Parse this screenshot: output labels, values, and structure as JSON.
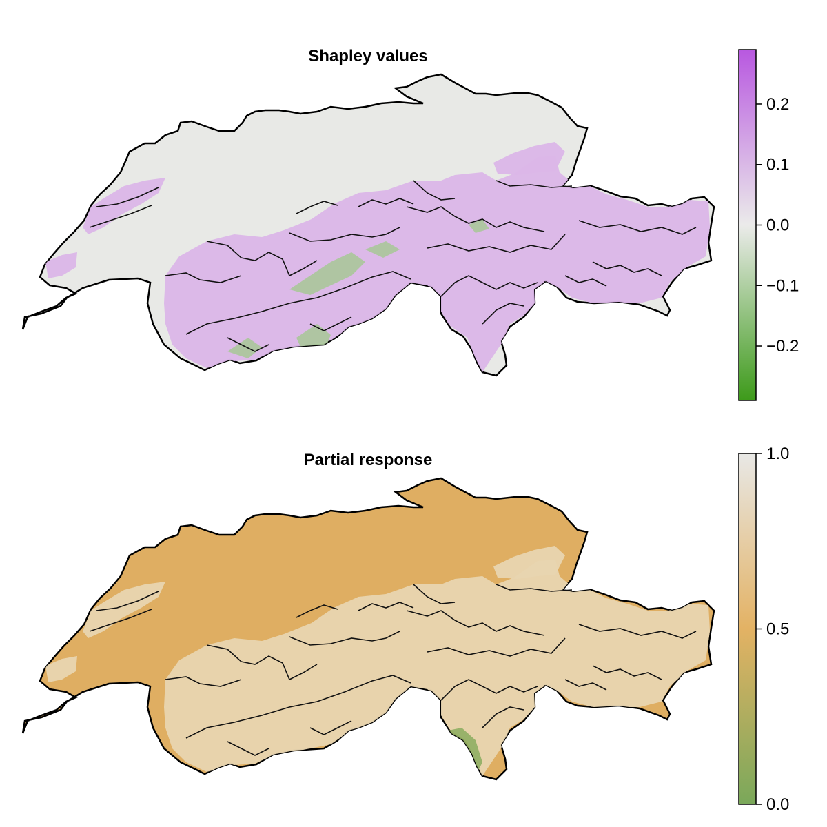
{
  "panels": [
    {
      "title": "Shapley values",
      "colorbar": {
        "ticks": [
          "0.2",
          "0.1",
          "0.0",
          "−0.1",
          "−0.2"
        ],
        "tick_values": [
          0.2,
          0.1,
          0.0,
          -0.1,
          -0.2
        ],
        "range": [
          -0.29,
          0.29
        ],
        "colors": {
          "low": "#3d9a1a",
          "mid": "#ebebea",
          "high": "#b858e0"
        }
      },
      "map_colors": {
        "base": "#e8e9e6",
        "positive": "#dbb6e8",
        "negative": "#aac79a"
      }
    },
    {
      "title": "Partial response",
      "colorbar": {
        "ticks": [
          "1.0",
          "0.5",
          "0.0"
        ],
        "tick_values": [
          1.0,
          0.5,
          0.0
        ],
        "range": [
          0.0,
          1.0
        ],
        "colors": {
          "low": "#7aa85a",
          "mid": "#e3b264",
          "high": "#e8e8e6"
        }
      },
      "map_colors": {
        "base": "#dfae62",
        "highland": "#e8d5b0",
        "lowland": "#8fae63"
      }
    }
  ]
}
